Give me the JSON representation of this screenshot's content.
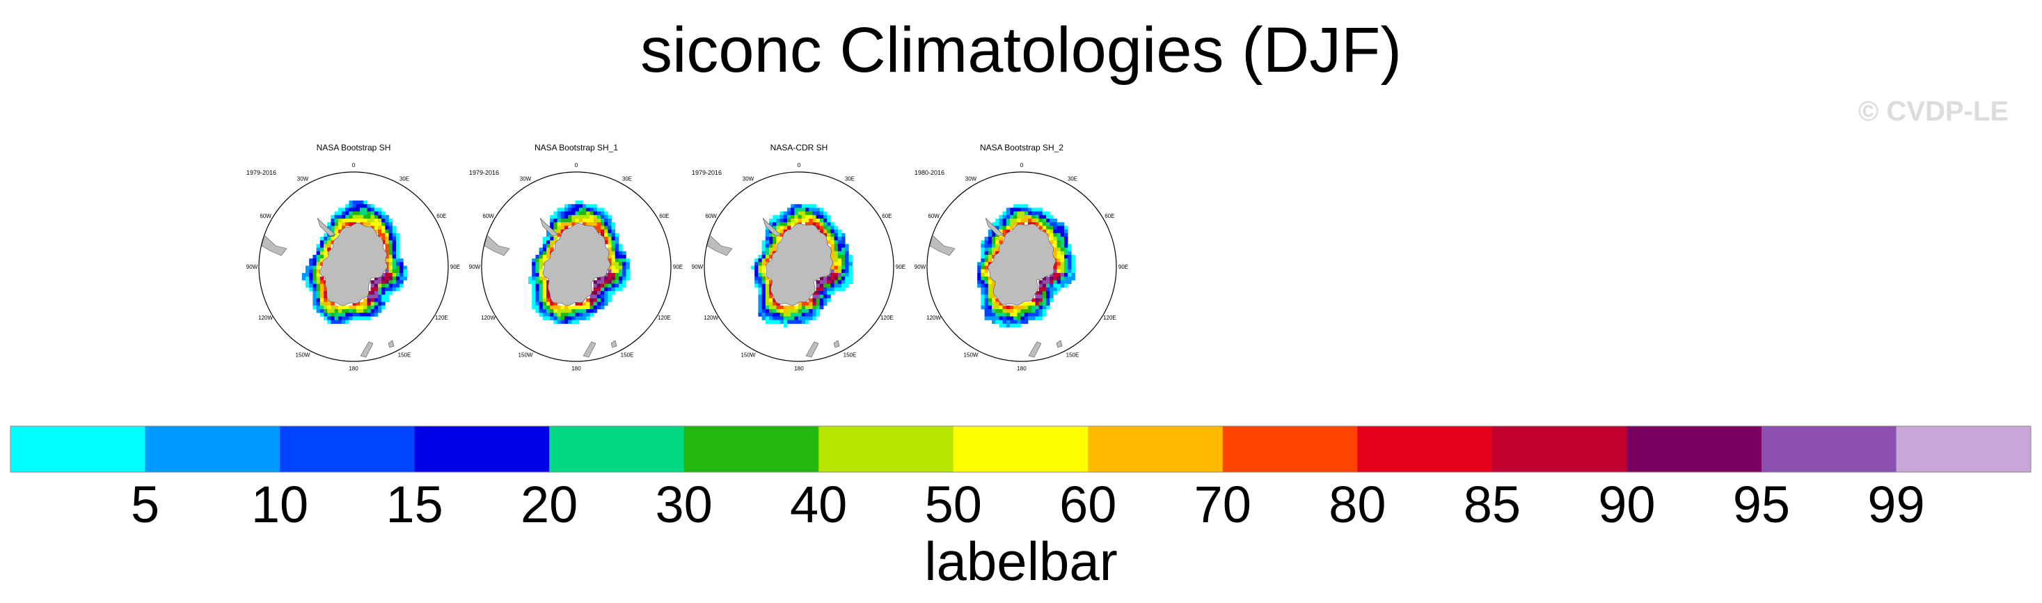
{
  "title": "siconc Climatologies (DJF)",
  "watermark": "© CVDP-LE",
  "panels": [
    {
      "title": "NASA Bootstrap SH",
      "period": "1979-2016"
    },
    {
      "title": "NASA Bootstrap SH_1",
      "period": "1979-2016"
    },
    {
      "title": "NASA-CDR SH",
      "period": "1979-2016"
    },
    {
      "title": "NASA Bootstrap SH_2",
      "period": "1980-2016"
    }
  ],
  "longitude_labels": [
    "0",
    "30E",
    "60E",
    "90E",
    "120E",
    "150E",
    "180",
    "150W",
    "120W",
    "90W",
    "60W",
    "30W"
  ],
  "labelbar": {
    "title": "labelbar",
    "levels": [
      "5",
      "10",
      "15",
      "20",
      "30",
      "40",
      "50",
      "60",
      "70",
      "80",
      "85",
      "90",
      "95",
      "99"
    ],
    "colors": [
      "#00ffff",
      "#0099ff",
      "#0044ff",
      "#0000e6",
      "#00d982",
      "#22b80f",
      "#b8e600",
      "#ffff00",
      "#ffbb00",
      "#ff4400",
      "#e6001a",
      "#c0002f",
      "#7a0060",
      "#8c50b0",
      "#c8a6d8"
    ]
  }
}
